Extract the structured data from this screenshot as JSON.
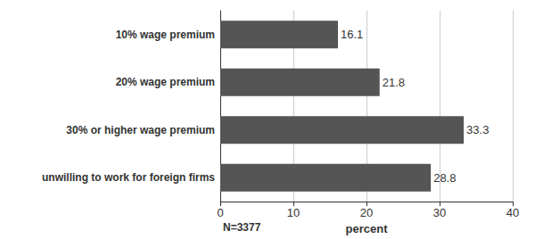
{
  "chart_data": {
    "type": "bar",
    "orientation": "horizontal",
    "categories": [
      "10% wage premium",
      "20% wage premium",
      "30% or higher wage premium",
      "unwilling to work for foreign firms"
    ],
    "values": [
      16.1,
      21.8,
      33.3,
      28.8
    ],
    "color": "#555555",
    "x_label": "percent",
    "xlim": [
      0,
      40
    ],
    "xticks": [
      0,
      10,
      20,
      30,
      40
    ],
    "grid": true,
    "data_labels": true,
    "annotations": [
      "N=3377"
    ]
  }
}
